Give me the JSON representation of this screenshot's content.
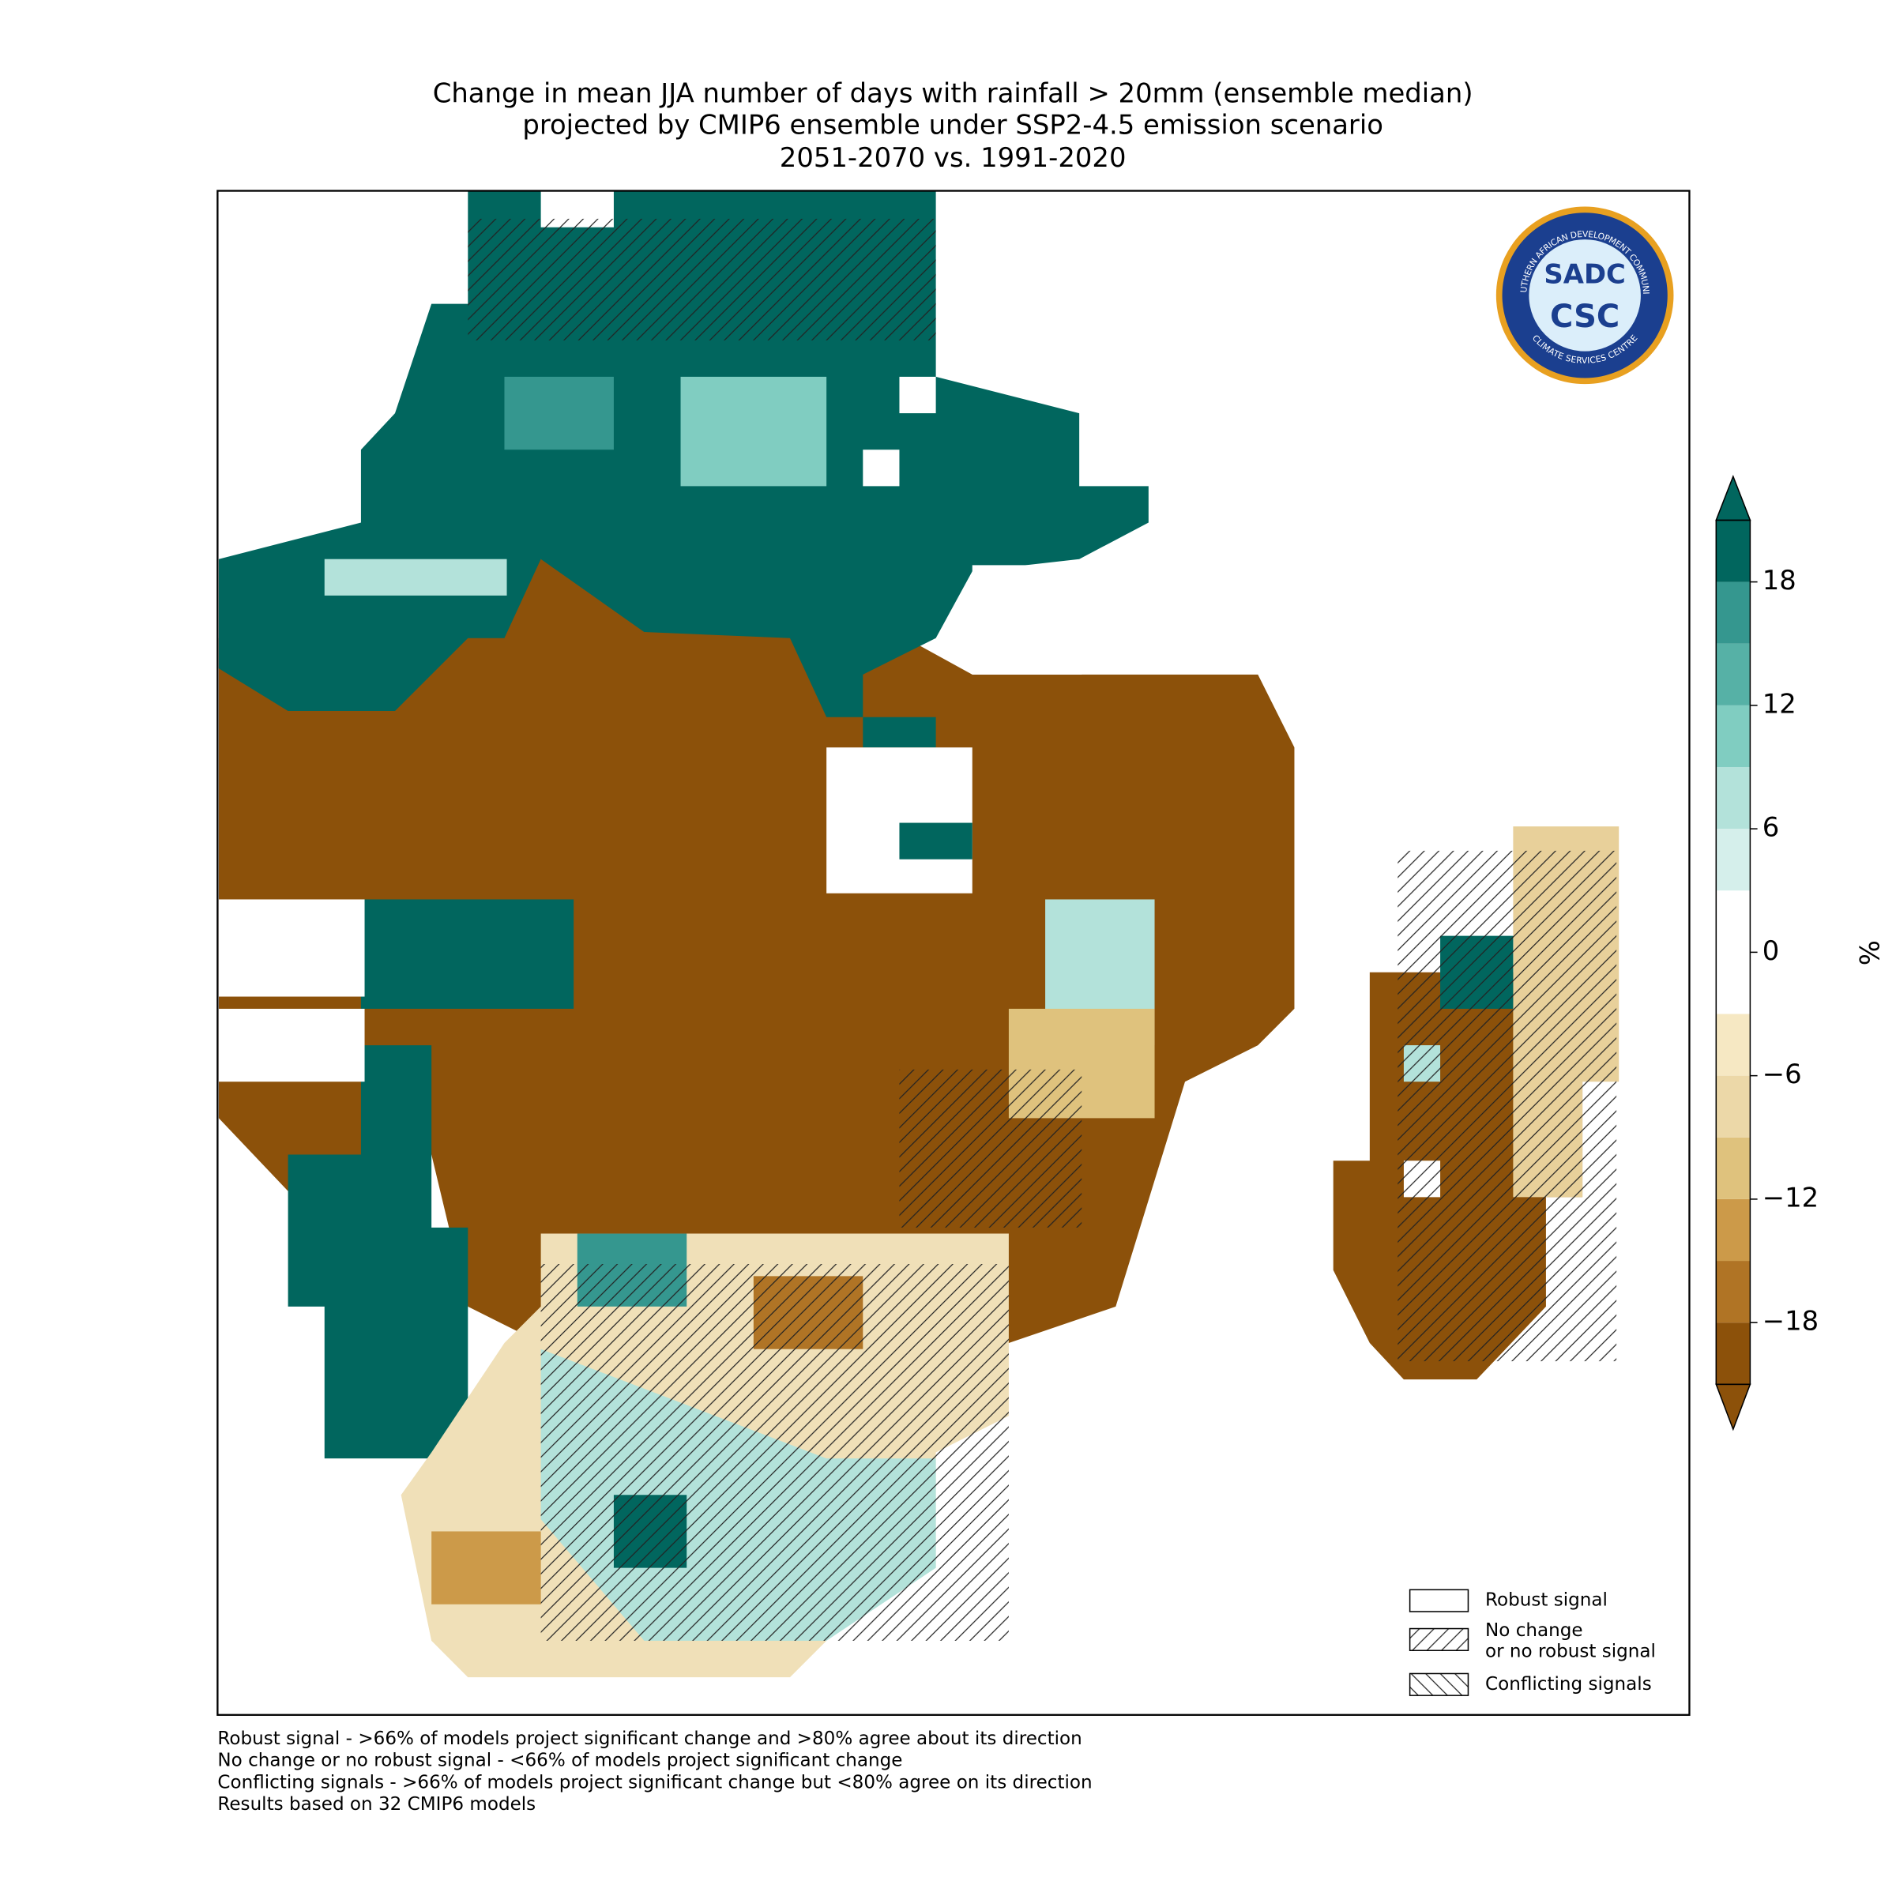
{
  "title": [
    "Change in mean JJA number of days with rainfall > 20mm (ensemble median)",
    "projected by CMIP6 ensemble under SSP2-4.5 emission scenario",
    "2051-2070 vs. 1991-2020"
  ],
  "colorbar": {
    "label": "%",
    "lim": [
      -21,
      21
    ],
    "colors": [
      "#8c510a",
      "#b07425",
      "#cc9a49",
      "#dfc27d",
      "#ecd8a8",
      "#f6e8c3",
      "#ffffff",
      "#ffffff",
      "#d5efeb",
      "#b3e2da",
      "#80cdc1",
      "#56b1a6",
      "#35978f",
      "#01665e"
    ],
    "ticks": [
      {
        "value": -18,
        "label": "−18"
      },
      {
        "value": -12,
        "label": "−12"
      },
      {
        "value": -6,
        "label": "−6"
      },
      0,
      6,
      12,
      18
    ]
  },
  "legend": [
    {
      "label": "Robust signal",
      "hatch": "none"
    },
    {
      "label": [
        "No change",
        "or no robust signal"
      ],
      "hatch": "forward"
    },
    {
      "label": "Conflicting signals",
      "hatch": "back"
    }
  ],
  "footnotes": [
    "Robust signal - >66% of models project significant change and >80% agree about its direction",
    "No change or no robust signal - <66% of models project significant change",
    "Conflicting signals - >66% of models project significant change but <80% agree on its direction",
    "Results based on 32 CMIP6 models"
  ],
  "logo": {
    "top": "SADC",
    "bottom": "CSC",
    "ring_top": "SOUTHERN AFRICAN DEVELOPMENT COMMUNITY",
    "ring_bottom": "CLIMATE SERVICES CENTRE"
  }
}
